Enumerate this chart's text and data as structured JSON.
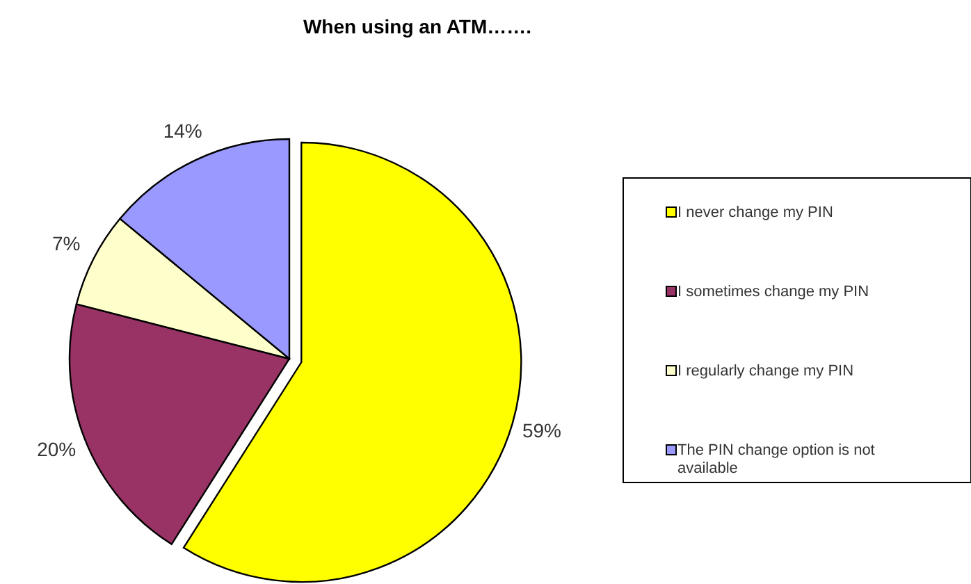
{
  "chart_data": {
    "type": "pie",
    "title": "When using an ATM…….",
    "categories": [
      "I never change my PIN",
      "I sometimes change my PIN",
      "I regularly change my PIN",
      "The PIN change option is not available"
    ],
    "values": [
      59,
      20,
      7,
      14
    ],
    "colors": [
      "#ffff00",
      "#993366",
      "#ffffcc",
      "#9999ff"
    ],
    "value_labels": [
      "59%",
      "20%",
      "7%",
      "14%"
    ],
    "legend": "right"
  }
}
